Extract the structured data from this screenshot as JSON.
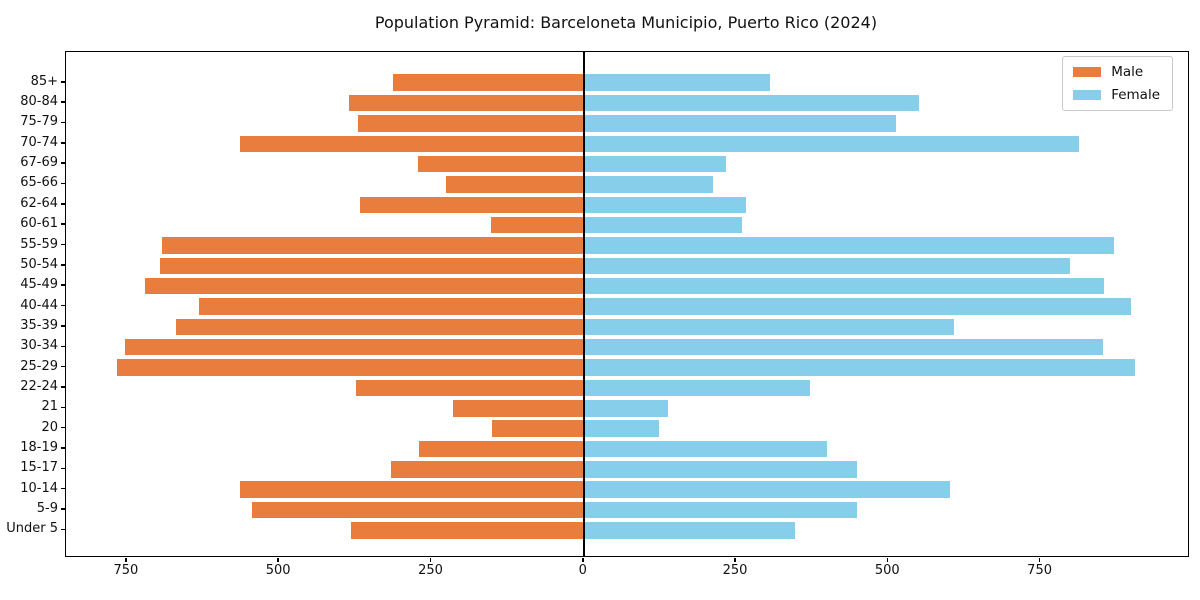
{
  "title": "Population Pyramid: Barceloneta Municipio, Puerto Rico (2024)",
  "legend": {
    "male_label": "Male",
    "female_label": "Female"
  },
  "colors": {
    "male": "#e87d3e",
    "female": "#87ceeb",
    "axis": "#000000"
  },
  "chart_data": {
    "type": "bar",
    "subtype": "population-pyramid-horizontal",
    "title": "Population Pyramid: Barceloneta Municipio, Puerto Rico (2024)",
    "categories": [
      "85+",
      "80-84",
      "75-79",
      "70-74",
      "67-69",
      "65-66",
      "62-64",
      "60-61",
      "55-59",
      "50-54",
      "45-49",
      "40-44",
      "35-39",
      "30-34",
      "25-29",
      "22-24",
      "21",
      "20",
      "18-19",
      "15-17",
      "10-14",
      "5-9",
      "Under 5"
    ],
    "series": [
      {
        "name": "Male",
        "side": "left",
        "color": "#e87d3e",
        "values": [
          314,
          386,
          371,
          565,
          272,
          226,
          368,
          153,
          693,
          695,
          720,
          631,
          670,
          753,
          766,
          374,
          214,
          151,
          270,
          317,
          565,
          544,
          382
        ]
      },
      {
        "name": "Female",
        "side": "right",
        "color": "#87ceeb",
        "values": [
          305,
          550,
          513,
          813,
          233,
          213,
          266,
          259,
          871,
          799,
          854,
          898,
          608,
          853,
          905,
          371,
          138,
          124,
          399,
          448,
          601,
          449,
          347
        ]
      }
    ],
    "x_tick_positions": [
      -750,
      -500,
      -250,
      0,
      250,
      500,
      750
    ],
    "x_tick_labels": [
      "750",
      "500",
      "250",
      "0",
      "250",
      "500",
      "750"
    ],
    "axis": {
      "male_max": 850,
      "female_max": 992
    },
    "grid": false,
    "legend_position": "upper right"
  }
}
